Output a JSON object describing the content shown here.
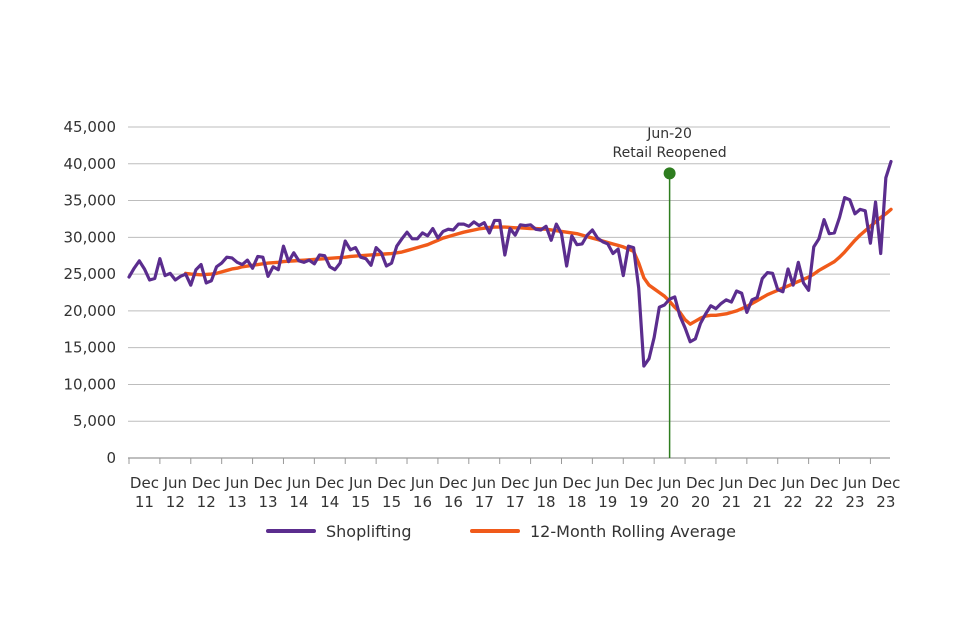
{
  "chart_data": {
    "type": "line",
    "title": "",
    "xlabel": "",
    "ylabel": "",
    "ylim": [
      0,
      45000
    ],
    "y_ticks": [
      0,
      5000,
      10000,
      15000,
      20000,
      25000,
      30000,
      35000,
      40000,
      45000
    ],
    "y_tick_labels": [
      "0",
      "5,000",
      "10,000",
      "15,000",
      "20,000",
      "25,000",
      "30,000",
      "35,000",
      "40,000",
      "45,000"
    ],
    "x_tick_labels": [
      {
        "m": "Dec",
        "y": "11"
      },
      {
        "m": "Jun",
        "y": "12"
      },
      {
        "m": "Dec",
        "y": "12"
      },
      {
        "m": "Jun",
        "y": "13"
      },
      {
        "m": "Dec",
        "y": "13"
      },
      {
        "m": "Jun",
        "y": "14"
      },
      {
        "m": "Dec",
        "y": "14"
      },
      {
        "m": "Jun",
        "y": "15"
      },
      {
        "m": "Dec",
        "y": "15"
      },
      {
        "m": "Jun",
        "y": "16"
      },
      {
        "m": "Dec",
        "y": "16"
      },
      {
        "m": "Jun",
        "y": "17"
      },
      {
        "m": "Dec",
        "y": "17"
      },
      {
        "m": "Jun",
        "y": "18"
      },
      {
        "m": "Dec",
        "y": "18"
      },
      {
        "m": "Jun",
        "y": "19"
      },
      {
        "m": "Dec",
        "y": "19"
      },
      {
        "m": "Jun",
        "y": "20"
      },
      {
        "m": "Dec",
        "y": "20"
      },
      {
        "m": "Jun",
        "y": "21"
      },
      {
        "m": "Dec",
        "y": "21"
      },
      {
        "m": "Jun",
        "y": "22"
      },
      {
        "m": "Dec",
        "y": "22"
      },
      {
        "m": "Jun",
        "y": "23"
      },
      {
        "m": "Dec",
        "y": "23"
      }
    ],
    "x_start": "2011-09",
    "grid": "horizontal",
    "legend_position": "bottom",
    "annotation": {
      "x": "2020-06",
      "y": 38700,
      "line1": "Jun-20",
      "line2": "Retail Reopened",
      "color": "#2e7d1f"
    },
    "series": [
      {
        "name": "Shoplifting",
        "color": "#5b2d8e",
        "values": [
          24600,
          25800,
          26800,
          25700,
          24200,
          24400,
          27100,
          24800,
          25100,
          24200,
          24700,
          25000,
          23500,
          25600,
          26300,
          23800,
          24100,
          26000,
          26500,
          27300,
          27200,
          26600,
          26300,
          26900,
          25800,
          27400,
          27300,
          24700,
          26000,
          25600,
          28800,
          26700,
          27900,
          26800,
          26600,
          26900,
          26400,
          27600,
          27500,
          26000,
          25600,
          26500,
          29500,
          28300,
          28600,
          27300,
          27100,
          26200,
          28600,
          27900,
          26100,
          26500,
          28800,
          29800,
          30700,
          29800,
          29800,
          30600,
          30200,
          31200,
          29900,
          30800,
          31100,
          31000,
          31800,
          31800,
          31500,
          32100,
          31600,
          32000,
          30600,
          32300,
          32300,
          27600,
          31200,
          30300,
          31700,
          31600,
          31700,
          31100,
          31000,
          31500,
          29600,
          31800,
          30500,
          26100,
          30200,
          29000,
          29100,
          30300,
          31000,
          29900,
          29400,
          29100,
          27800,
          28400,
          24800,
          28800,
          28600,
          23100,
          12500,
          13500,
          16400,
          20500,
          20800,
          21600,
          21900,
          19300,
          17700,
          15800,
          16200,
          18300,
          19600,
          20700,
          20300,
          21000,
          21500,
          21200,
          22700,
          22400,
          19800,
          21500,
          21800,
          24400,
          25200,
          25100,
          22900,
          22600,
          25700,
          23500,
          26600,
          23800,
          22800,
          28700,
          29800,
          32400,
          30500,
          30600,
          32700,
          35400,
          35100,
          33200,
          33800,
          33600,
          29200,
          34800,
          27800,
          38100,
          40300
        ]
      },
      {
        "name": "12-Month Rolling Average",
        "color": "#f05a1a",
        "values": [
          null,
          null,
          null,
          null,
          null,
          null,
          null,
          null,
          null,
          null,
          null,
          25100,
          25000,
          24950,
          24900,
          24950,
          25000,
          25100,
          25300,
          25500,
          25700,
          25800,
          26000,
          26100,
          26200,
          26300,
          26400,
          26500,
          26550,
          26600,
          26700,
          26750,
          26800,
          26850,
          26900,
          26950,
          27000,
          27050,
          27100,
          27150,
          27200,
          27250,
          27300,
          27400,
          27450,
          27500,
          27550,
          27600,
          27650,
          27700,
          27750,
          27800,
          27900,
          28000,
          28200,
          28400,
          28600,
          28800,
          29000,
          29300,
          29600,
          29900,
          30100,
          30300,
          30500,
          30700,
          30850,
          31000,
          31150,
          31250,
          31350,
          31400,
          31400,
          31400,
          31350,
          31300,
          31300,
          31250,
          31200,
          31200,
          31150,
          31100,
          31000,
          30900,
          30800,
          30700,
          30600,
          30500,
          30300,
          30100,
          29900,
          29700,
          29500,
          29300,
          29100,
          28900,
          28700,
          28400,
          28100,
          26500,
          24500,
          23500,
          23000,
          22500,
          22000,
          21300,
          20500,
          19800,
          18800,
          18200,
          18600,
          19000,
          19300,
          19400,
          19400,
          19500,
          19600,
          19800,
          20000,
          20300,
          20600,
          21000,
          21400,
          21800,
          22200,
          22500,
          22800,
          23100,
          23400,
          23700,
          24000,
          24300,
          24600,
          25000,
          25500,
          25900,
          26300,
          26700,
          27300,
          28000,
          28800,
          29600,
          30300,
          30900,
          31500,
          32100,
          32700,
          33200,
          33800
        ]
      }
    ]
  }
}
